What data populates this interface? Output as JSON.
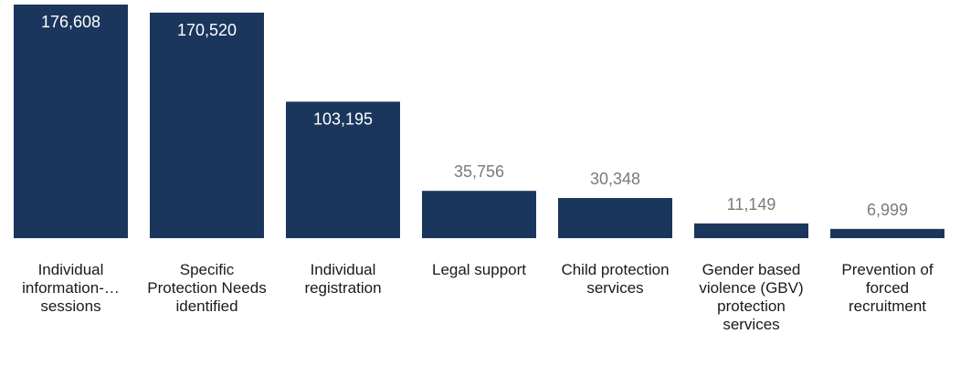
{
  "chart_data": {
    "type": "bar",
    "categories": [
      "Individual information-… sessions",
      "Specific Protection Needs identified",
      "Individual registration",
      "Legal support",
      "Child protection services",
      "Gender based violence (GBV) protection services",
      "Prevention of forced recruitment"
    ],
    "values": [
      176608,
      170520,
      103195,
      35756,
      30348,
      11149,
      6999
    ],
    "value_labels": [
      "176,608",
      "170,520",
      "103,195",
      "35,756",
      "30,348",
      "11,149",
      "6,999"
    ],
    "title": "",
    "xlabel": "",
    "ylabel": "",
    "ylim": [
      0,
      176608
    ],
    "grid": false,
    "legend": "none",
    "colors": {
      "bar": "#1b365d",
      "label_inside": "#ffffff",
      "label_outside": "#7a7a7a",
      "category_text": "#1a1a1a"
    }
  }
}
